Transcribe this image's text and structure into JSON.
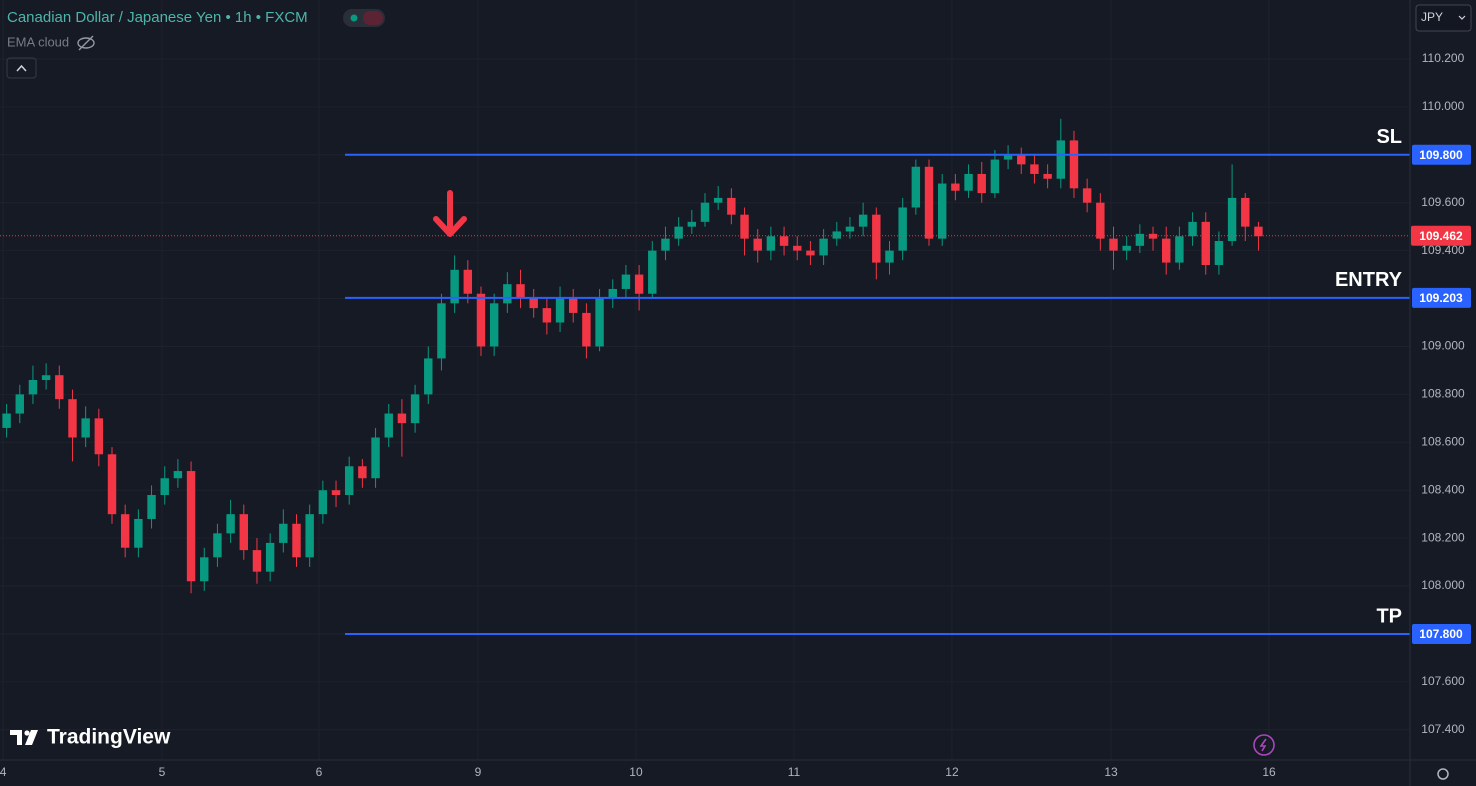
{
  "chart_data": {
    "type": "candlestick",
    "title": "Canadian Dollar / Japanese Yen • 1h • FXCM",
    "indicator": "EMA cloud",
    "currency": "JPY",
    "brand": "TradingView",
    "up_color": "#089981",
    "down_color": "#f23645",
    "level_color": "#2962ff",
    "open": [
      108.66,
      108.72,
      108.8,
      108.86,
      108.88,
      108.78,
      108.62,
      108.7,
      108.55,
      108.3,
      108.16,
      108.28,
      108.38,
      108.45,
      108.48,
      108.02,
      108.12,
      108.22,
      108.3,
      108.15,
      108.06,
      108.18,
      108.26,
      108.12,
      108.3,
      108.4,
      108.38,
      108.5,
      108.45,
      108.62,
      108.72,
      108.68,
      108.8,
      108.95,
      109.18,
      109.32,
      109.22,
      109.0,
      109.18,
      109.26,
      109.2,
      109.16,
      109.1,
      109.2,
      109.14,
      109.0,
      109.2,
      109.24,
      109.3,
      109.22,
      109.4,
      109.45,
      109.5,
      109.52,
      109.6,
      109.62,
      109.55,
      109.45,
      109.4,
      109.46,
      109.42,
      109.4,
      109.38,
      109.45,
      109.48,
      109.5,
      109.55,
      109.35,
      109.4,
      109.58,
      109.75,
      109.45,
      109.68,
      109.65,
      109.72,
      109.64,
      109.78,
      109.8,
      109.76,
      109.72,
      109.7,
      109.86,
      109.66,
      109.6,
      109.45,
      109.4,
      109.42,
      109.47,
      109.45,
      109.35,
      109.46,
      109.52,
      109.34,
      109.44,
      109.62,
      109.5
    ],
    "high": [
      108.76,
      108.84,
      108.92,
      108.93,
      108.92,
      108.82,
      108.75,
      108.74,
      108.58,
      108.34,
      108.32,
      108.42,
      108.5,
      108.53,
      108.52,
      108.16,
      108.26,
      108.36,
      108.34,
      108.2,
      108.22,
      108.32,
      108.3,
      108.34,
      108.44,
      108.44,
      108.54,
      108.53,
      108.66,
      108.76,
      108.78,
      108.84,
      109.0,
      109.22,
      109.38,
      109.36,
      109.25,
      109.22,
      109.31,
      109.32,
      109.24,
      109.2,
      109.25,
      109.24,
      109.18,
      109.24,
      109.28,
      109.34,
      109.34,
      109.44,
      109.5,
      109.54,
      109.57,
      109.64,
      109.67,
      109.66,
      109.58,
      109.49,
      109.5,
      109.5,
      109.46,
      109.44,
      109.49,
      109.52,
      109.54,
      109.6,
      109.58,
      109.44,
      109.62,
      109.78,
      109.78,
      109.72,
      109.72,
      109.76,
      109.77,
      109.82,
      109.84,
      109.83,
      109.8,
      109.76,
      109.95,
      109.9,
      109.7,
      109.64,
      109.5,
      109.46,
      109.51,
      109.5,
      109.5,
      109.5,
      109.56,
      109.56,
      109.48,
      109.76,
      109.64,
      109.52
    ],
    "low": [
      108.62,
      108.68,
      108.76,
      108.82,
      108.74,
      108.52,
      108.58,
      108.5,
      108.26,
      108.12,
      108.12,
      108.24,
      108.34,
      108.41,
      107.97,
      107.98,
      108.08,
      108.18,
      108.11,
      108.01,
      108.02,
      108.14,
      108.08,
      108.08,
      108.26,
      108.33,
      108.34,
      108.41,
      108.41,
      108.58,
      108.54,
      108.64,
      108.76,
      108.9,
      109.14,
      109.18,
      108.96,
      108.96,
      109.14,
      109.16,
      109.12,
      109.05,
      109.06,
      109.1,
      108.95,
      108.98,
      109.16,
      109.2,
      109.15,
      109.2,
      109.36,
      109.42,
      109.47,
      109.5,
      109.57,
      109.51,
      109.38,
      109.35,
      109.36,
      109.38,
      109.36,
      109.34,
      109.34,
      109.42,
      109.45,
      109.46,
      109.28,
      109.3,
      109.36,
      109.55,
      109.42,
      109.42,
      109.61,
      109.62,
      109.6,
      109.62,
      109.74,
      109.72,
      109.68,
      109.66,
      109.66,
      109.62,
      109.56,
      109.4,
      109.32,
      109.36,
      109.39,
      109.4,
      109.3,
      109.32,
      109.42,
      109.3,
      109.3,
      109.42,
      109.44,
      109.4
    ],
    "close": [
      108.72,
      108.8,
      108.86,
      108.88,
      108.78,
      108.62,
      108.7,
      108.55,
      108.3,
      108.16,
      108.28,
      108.38,
      108.45,
      108.48,
      108.02,
      108.12,
      108.22,
      108.3,
      108.15,
      108.06,
      108.18,
      108.26,
      108.12,
      108.3,
      108.4,
      108.38,
      108.5,
      108.45,
      108.62,
      108.72,
      108.68,
      108.8,
      108.95,
      109.18,
      109.32,
      109.22,
      109.0,
      109.18,
      109.26,
      109.2,
      109.16,
      109.1,
      109.2,
      109.14,
      109.0,
      109.2,
      109.24,
      109.3,
      109.22,
      109.4,
      109.45,
      109.5,
      109.52,
      109.6,
      109.62,
      109.55,
      109.45,
      109.4,
      109.46,
      109.42,
      109.4,
      109.38,
      109.45,
      109.48,
      109.5,
      109.55,
      109.35,
      109.4,
      109.58,
      109.75,
      109.45,
      109.68,
      109.65,
      109.72,
      109.64,
      109.78,
      109.8,
      109.76,
      109.72,
      109.7,
      109.86,
      109.66,
      109.6,
      109.45,
      109.4,
      109.42,
      109.47,
      109.45,
      109.35,
      109.46,
      109.52,
      109.34,
      109.44,
      109.62,
      109.5,
      109.46
    ],
    "ylim": [
      107.274,
      110.446
    ],
    "yticks": [
      {
        "value": 107.4,
        "label": "107.400"
      },
      {
        "value": 107.6,
        "label": "107.600"
      },
      {
        "value": 107.8,
        "label": "107.800"
      },
      {
        "value": 108.0,
        "label": "108.000"
      },
      {
        "value": 108.2,
        "label": "108.200"
      },
      {
        "value": 108.4,
        "label": "108.400"
      },
      {
        "value": 108.6,
        "label": "108.600"
      },
      {
        "value": 108.8,
        "label": "108.800"
      },
      {
        "value": 109.0,
        "label": "109.000"
      },
      {
        "value": 109.2,
        "label": "109.200"
      },
      {
        "value": 109.4,
        "label": "109.400"
      },
      {
        "value": 109.6,
        "label": "109.600"
      },
      {
        "value": 109.8,
        "label": "109.800"
      },
      {
        "value": 110.0,
        "label": "110.000"
      },
      {
        "value": 110.2,
        "label": "110.200"
      }
    ],
    "xlim": [
      -0.5,
      106.5
    ],
    "xticks": [
      {
        "value": -0.27,
        "label": "4"
      },
      {
        "value": 11.79,
        "label": "5"
      },
      {
        "value": 23.71,
        "label": "6"
      },
      {
        "value": 35.77,
        "label": "9"
      },
      {
        "value": 47.76,
        "label": "10"
      },
      {
        "value": 59.75,
        "label": "11"
      },
      {
        "value": 71.74,
        "label": "12"
      },
      {
        "value": 83.81,
        "label": "13"
      },
      {
        "value": 95.8,
        "label": "16"
      }
    ],
    "levels": [
      {
        "name": "SL",
        "value": 109.8,
        "value_label": "109.800"
      },
      {
        "name": "ENTRY",
        "value": 109.203
      },
      {
        "name": "TP",
        "value": 107.8,
        "value_label": "107.800"
      }
    ],
    "last_price": 109.462,
    "last_price_color": "#f23645"
  }
}
